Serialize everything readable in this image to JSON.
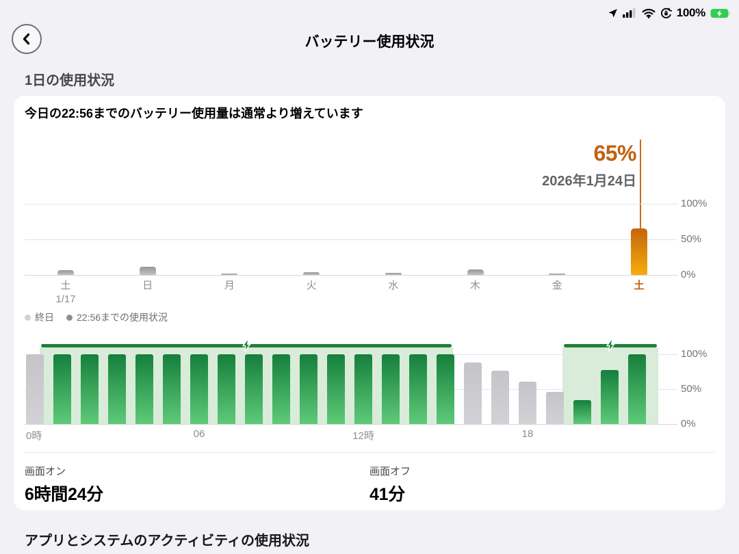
{
  "status_bar": {
    "battery_percent": "100%",
    "icons": [
      "location-icon",
      "cellular-signal-icon",
      "wifi-icon",
      "orientation-lock-icon",
      "battery-charging-icon"
    ]
  },
  "nav": {
    "title": "バッテリー使用状況",
    "back": "back"
  },
  "sections": {
    "daily": "1日の使用状況",
    "apps": "アプリとシステムのアクティビティの使用状況"
  },
  "card": {
    "headline": "今日の22:56までのバッテリー使用量は通常より増えています",
    "annotation": {
      "value": "65%",
      "date": "2026年1月24日"
    },
    "legend": [
      {
        "label": "終日",
        "color": "#d1d1d6"
      },
      {
        "label": "22:56までの使用状況",
        "color": "#8e8e93"
      }
    ],
    "screen_on": {
      "label": "画面オン",
      "value": "6時間24分"
    },
    "screen_off": {
      "label": "画面オフ",
      "value": "41分"
    }
  },
  "chart_data": [
    {
      "type": "bar",
      "name": "weekly-battery-usage",
      "categories": [
        "土",
        "日",
        "月",
        "火",
        "水",
        "木",
        "金",
        "土"
      ],
      "category_subs": [
        "1/17",
        "",
        "",
        "",
        "",
        "",
        "",
        ""
      ],
      "values": [
        7,
        12,
        2,
        4,
        3,
        8,
        2,
        65
      ],
      "highlight_index": 7,
      "y_ticks": [
        "100%",
        "50%",
        "0%"
      ],
      "ylim": [
        0,
        100
      ],
      "annotation_value": "65%",
      "annotation_date": "2026年1月24日",
      "colors": {
        "bar": "#a8a8ad",
        "highlight_top": "#c4650e",
        "highlight_bottom": "#f6ad0c"
      }
    },
    {
      "type": "bar",
      "name": "hourly-battery-level",
      "x_ticks": [
        {
          "label": "0時",
          "hour": 0,
          "align": "left"
        },
        {
          "label": "06",
          "hour": 6
        },
        {
          "label": "12時",
          "hour": 12
        },
        {
          "label": "18",
          "hour": 18
        }
      ],
      "levels": [
        100,
        100,
        100,
        100,
        100,
        100,
        100,
        100,
        100,
        100,
        100,
        100,
        100,
        100,
        100,
        100,
        88,
        76,
        61,
        46,
        34,
        77,
        100
      ],
      "charging": [
        false,
        true,
        true,
        true,
        true,
        true,
        true,
        true,
        true,
        true,
        true,
        true,
        true,
        true,
        true,
        true,
        false,
        false,
        false,
        false,
        true,
        true,
        true
      ],
      "charging_regions": [
        {
          "start": 0.5,
          "end": 15.6
        },
        {
          "start": 19.6,
          "end": 23.1
        }
      ],
      "y_ticks": [
        "100%",
        "50%",
        "0%"
      ],
      "ylim": [
        0,
        100
      ],
      "colors": {
        "green_top": "#157f3c",
        "green_bottom": "#5fca79",
        "gray": "#c9c9ce",
        "region_bg": "#d8ecd9",
        "region_line": "#1f8038"
      }
    }
  ]
}
